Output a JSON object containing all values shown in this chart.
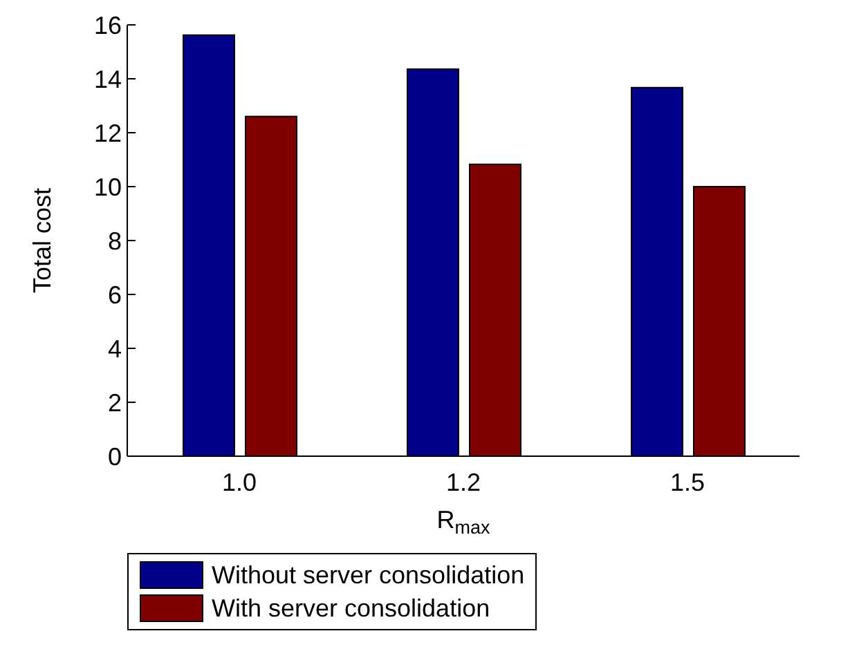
{
  "chart_data": {
    "type": "bar",
    "xlabel": "R$_{max}$",
    "ylabel": "Total cost",
    "categories": [
      "1.0",
      "1.2",
      "1.5"
    ],
    "series": [
      {
        "name": "Without server consolidation",
        "color": "#00008b",
        "values": [
          15.62,
          14.36,
          13.67
        ]
      },
      {
        "name": "With server consolidation",
        "color": "#800000",
        "values": [
          12.6,
          10.83,
          10.0
        ]
      }
    ],
    "ylim": [
      0,
      16
    ],
    "yticks": [
      0,
      2,
      4,
      6,
      8,
      10,
      12,
      14,
      16
    ],
    "grid": false,
    "legend": "bottom left"
  }
}
